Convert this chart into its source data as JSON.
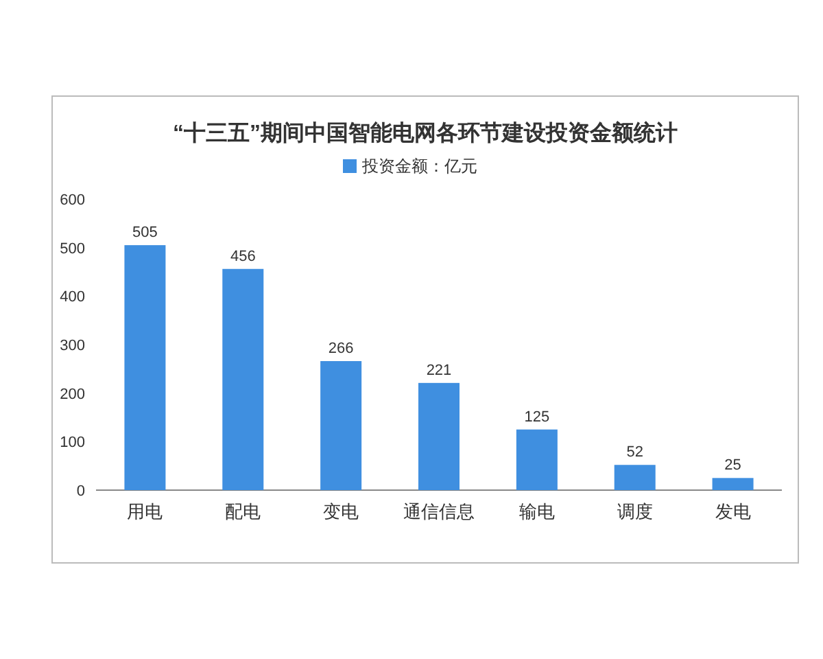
{
  "chart_data": {
    "type": "bar",
    "title": "“十三五”期间中国智能电网各环节建设投资金额统计",
    "categories": [
      "用电",
      "配电",
      "变电",
      "通信信息",
      "输电",
      "调度",
      "发电"
    ],
    "series": [
      {
        "name": "投资金额：亿元",
        "color": "#3f8fe0",
        "values": [
          505,
          456,
          266,
          221,
          125,
          52,
          25
        ]
      }
    ],
    "ylim": [
      0,
      600
    ],
    "yticks": [
      0,
      100,
      200,
      300,
      400,
      500,
      600
    ],
    "data_labels": true,
    "legend": "top"
  }
}
